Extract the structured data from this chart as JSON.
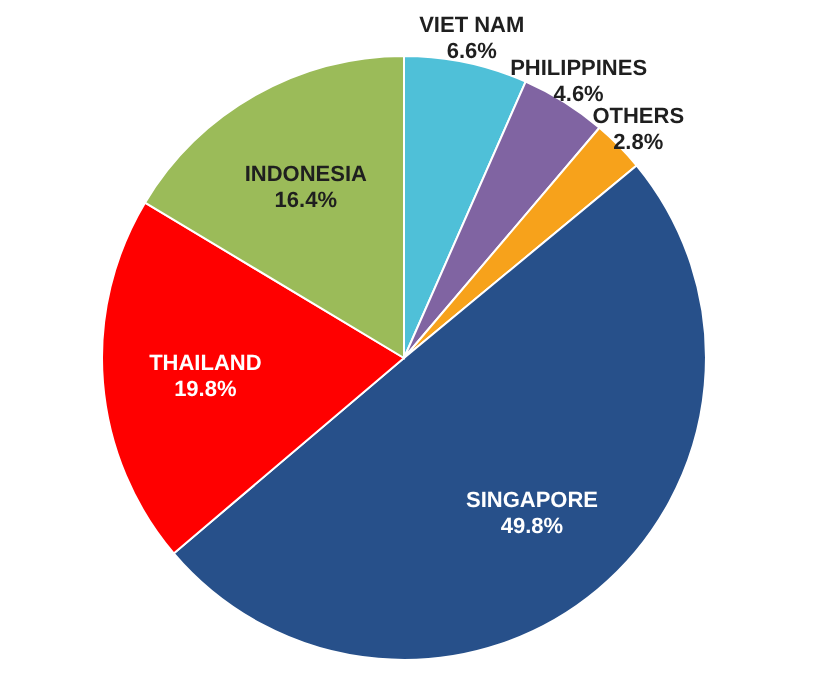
{
  "chart_data": {
    "type": "pie",
    "categories": [
      "VIET NAM",
      "PHILIPPINES",
      "OTHERS",
      "SINGAPORE",
      "THAILAND",
      "INDONESIA"
    ],
    "values": [
      6.6,
      4.6,
      2.8,
      49.8,
      19.8,
      16.4
    ],
    "value_labels": [
      "6.6%",
      "4.6%",
      "2.8%",
      "49.8%",
      "19.8%",
      "16.4%"
    ],
    "colors": [
      "#4fc0d8",
      "#8064a2",
      "#f7a21b",
      "#27508a",
      "#ff0000",
      "#9bbb59"
    ]
  }
}
